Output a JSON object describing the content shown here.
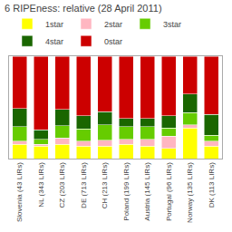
{
  "chart_data": {
    "type": "bar",
    "stacked": true,
    "title": "6 RIPEness: relative (28 April 2011)",
    "categories": [
      "Slovenia (43 LIRs)",
      "NL (343 LIRs)",
      "CZ (203 LIRs)",
      "DE (713 LIRs)",
      "CH (213 LIRs)",
      "Poland (199 LIRs)",
      "Austria (145 LIRs)",
      "Portugal (96 LIRs)",
      "Norway (135 LIRs)",
      "DK (113 LIRs)"
    ],
    "series": [
      {
        "name": "1star",
        "color": "#ffff00",
        "values": [
          0.14,
          0.12,
          0.14,
          0.12,
          0.12,
          0.14,
          0.12,
          0.1,
          0.3,
          0.12
        ]
      },
      {
        "name": "2star",
        "color": "#ffb6c1",
        "values": [
          0.03,
          0.02,
          0.06,
          0.05,
          0.06,
          0.05,
          0.07,
          0.12,
          0.03,
          0.05
        ]
      },
      {
        "name": "3star",
        "color": "#66cc00",
        "values": [
          0.14,
          0.05,
          0.12,
          0.12,
          0.15,
          0.12,
          0.12,
          0.08,
          0.12,
          0.06
        ]
      },
      {
        "name": "4star",
        "color": "#1a6600",
        "values": [
          0.18,
          0.09,
          0.16,
          0.13,
          0.13,
          0.08,
          0.08,
          0.12,
          0.18,
          0.2
        ]
      },
      {
        "name": "0star",
        "color": "#cc0000",
        "values": [
          0.51,
          0.72,
          0.52,
          0.58,
          0.54,
          0.61,
          0.61,
          0.58,
          0.37,
          0.57
        ]
      }
    ],
    "ylim": [
      0,
      1.0
    ],
    "yticks": [],
    "grid": false,
    "tick_labels": "x",
    "legend": "upper left"
  }
}
